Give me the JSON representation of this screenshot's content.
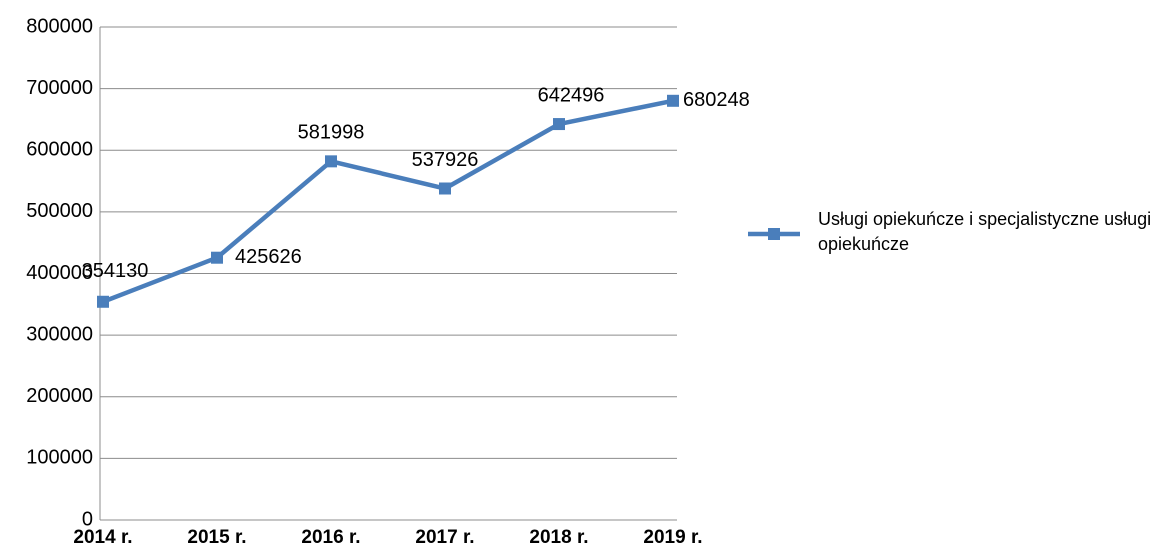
{
  "chart_data": {
    "type": "line",
    "categories": [
      "2014 r.",
      "2015 r.",
      "2016 r.",
      "2017 r.",
      "2018 r.",
      "2019 r."
    ],
    "series": [
      {
        "name": "Usługi opiekuńcze i specjalistyczne usługi opiekuńcze",
        "color": "#4a7ebb",
        "values": [
          354130,
          425626,
          581998,
          537926,
          642496,
          680248
        ]
      }
    ],
    "ylim": [
      0,
      800000
    ],
    "yticks": [
      0,
      100000,
      200000,
      300000,
      400000,
      500000,
      600000,
      700000,
      800000
    ],
    "grid": true,
    "legend": "right"
  }
}
